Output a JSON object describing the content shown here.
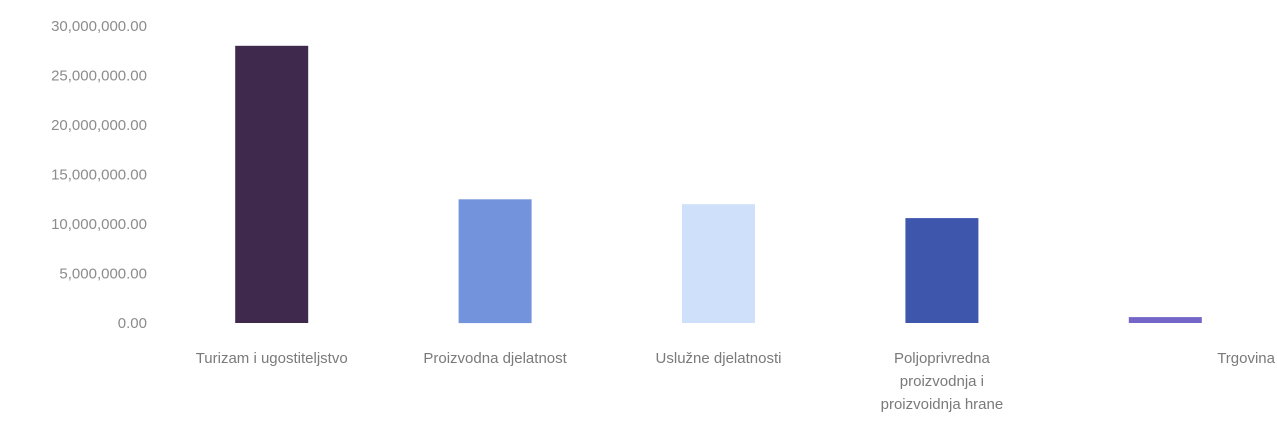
{
  "chart_data": {
    "type": "bar",
    "title": "",
    "xlabel": "",
    "ylabel": "",
    "ylim": [
      0,
      30000000
    ],
    "grid": false,
    "legend": "none",
    "y_ticks": [
      {
        "value": 0,
        "label": "0.00"
      },
      {
        "value": 5000000,
        "label": "5,000,000.00"
      },
      {
        "value": 10000000,
        "label": "10,000,000.00"
      },
      {
        "value": 15000000,
        "label": "15,000,000.00"
      },
      {
        "value": 20000000,
        "label": "20,000,000.00"
      },
      {
        "value": 25000000,
        "label": "25,000,000.00"
      },
      {
        "value": 30000000,
        "label": "30,000,000.00"
      }
    ],
    "categories": [
      [
        "Turizam i ugostiteljstvo"
      ],
      [
        "Proizvodna djelatnost"
      ],
      [
        "Uslužne djelatnosti"
      ],
      [
        "Poljoprivredna",
        "proizvodnja i",
        "proizvoidnja hrane"
      ],
      [
        "Trgovina"
      ]
    ],
    "values": [
      28000000,
      12500000,
      12000000,
      10600000,
      600000
    ],
    "colors": [
      "#3f2a4d",
      "#7393dc",
      "#cfe0fa",
      "#3f56ad",
      "#7466c8"
    ]
  }
}
